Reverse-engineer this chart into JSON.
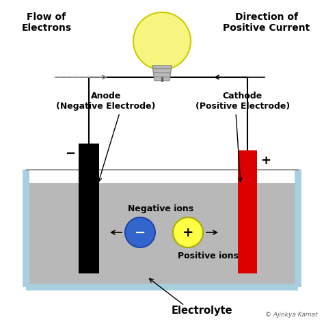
{
  "bg_color": "#ffffff",
  "flow_electrons_text": "Flow of\nElectrons",
  "direction_current_text": "Direction of\nPositive Current",
  "anode_label": "Anode\n(Negative Electrode)",
  "cathode_label": "Cathode\n(Positive Electrode)",
  "negative_ions_text": "Negative ions",
  "positive_ions_text": "Positive ions",
  "electrolyte_text": "Electrolyte",
  "copyright_text": "© Ajinkya Kamat",
  "anode_color": "#000000",
  "cathode_color": "#dd0000",
  "electrolyte_color": "#b8b8b8",
  "container_border_color": "#a8cfe0",
  "neg_ion_color": "#3366cc",
  "pos_ion_color": "#ffff44",
  "bulb_body_color": "#f5f580",
  "bulb_edge_color": "#cccc00",
  "wire_color": "#000000",
  "arrow_color": "#000000",
  "electron_arrow_color": "#888888"
}
